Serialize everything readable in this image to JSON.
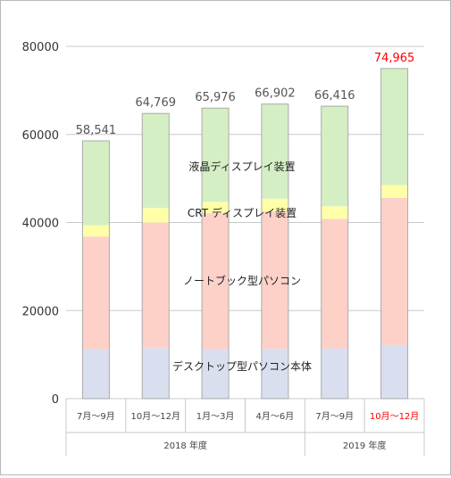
{
  "chart_data": {
    "type": "bar",
    "stacked": true,
    "categories": [
      "7月～9月",
      "10月～12月",
      "1月～3月",
      "4月～6月",
      "7月～9月",
      "10月～12月"
    ],
    "groups": [
      {
        "label": "2018 年度",
        "categories": [
          0,
          1,
          2,
          3
        ]
      },
      {
        "label": "2019 年度",
        "categories": [
          4,
          5
        ]
      }
    ],
    "series": [
      {
        "name": "デスクトップ型パソコン本体",
        "color": "#dadff0",
        "values": [
          11200,
          11500,
          11200,
          11300,
          11400,
          12200
        ]
      },
      {
        "name": "ノートブック型パソコン",
        "color": "#fdd0c8",
        "values": [
          25600,
          28500,
          30900,
          31200,
          29400,
          33400
        ]
      },
      {
        "name": "CRT ディスプレイ装置",
        "color": "#ffffa8",
        "values": [
          2600,
          3300,
          2600,
          2900,
          2900,
          2900
        ]
      },
      {
        "name": "液晶ディスプレイ装置",
        "color": "#d4efc4",
        "values": [
          19141,
          21469,
          21276,
          21502,
          22716,
          26465
        ]
      }
    ],
    "totals": [
      "58,541",
      "64,769",
      "65,976",
      "66,902",
      "66,416",
      "74,965"
    ],
    "highlight_index": 5,
    "highlight_color": "#ff0000",
    "y_ticks": [
      "0",
      "20000",
      "40000",
      "60000",
      "80000"
    ],
    "ylim": [
      0,
      80000
    ],
    "grid": true,
    "grid_color": "#c8c8c8",
    "bar_border_color": "#aaaaaa"
  }
}
